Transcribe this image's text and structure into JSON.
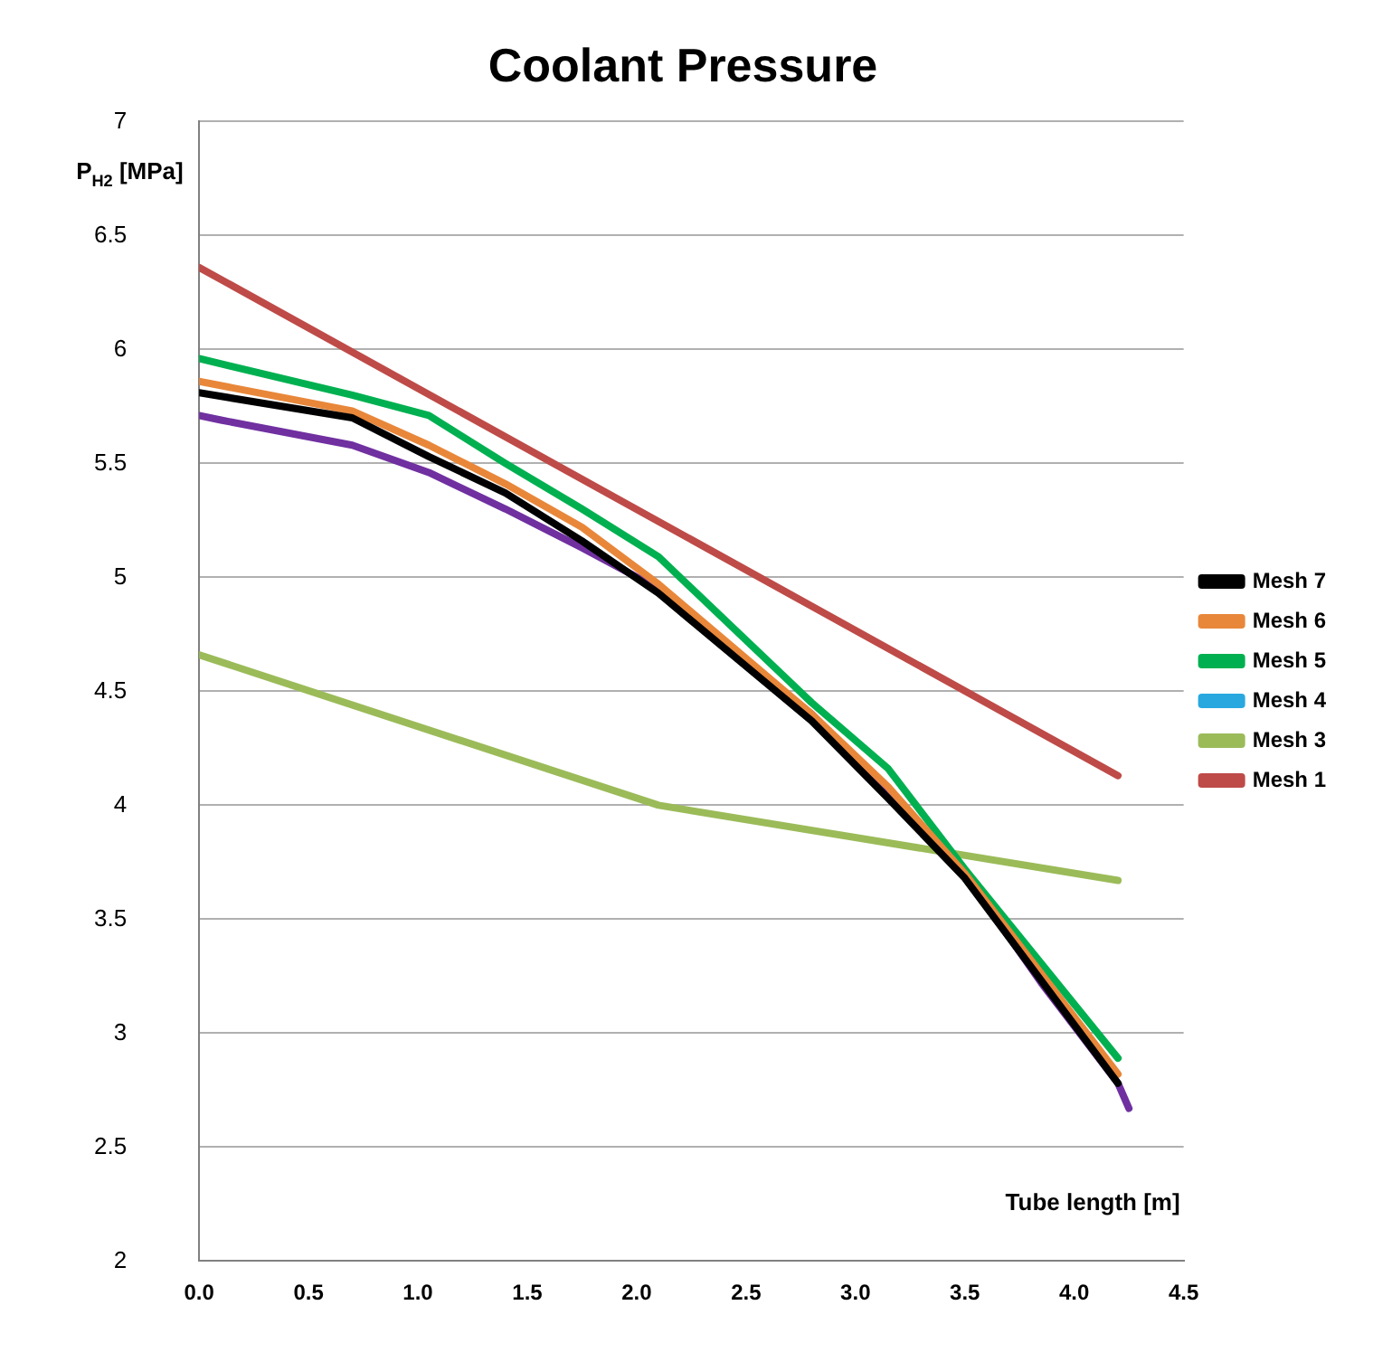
{
  "chart_data": {
    "type": "line",
    "title": "Coolant Pressure",
    "xlabel": "Tube length [m]",
    "ylabel": "P$_{H2}$ [MPa]",
    "xlim": [
      0,
      4.5
    ],
    "xticks": [
      {
        "value": 0,
        "label": "0.0"
      },
      {
        "value": 0.5,
        "label": "0.5"
      },
      {
        "value": 1,
        "label": "1.0"
      },
      {
        "value": 1.5,
        "label": "1.5"
      },
      {
        "value": 2,
        "label": "2.0"
      },
      {
        "value": 2.5,
        "label": "2.5"
      },
      {
        "value": 3,
        "label": "3.0"
      },
      {
        "value": 3.5,
        "label": "3.5"
      },
      {
        "value": 4,
        "label": "4.0"
      },
      {
        "value": 4.5,
        "label": "4.5"
      }
    ],
    "ylim": [
      2,
      7
    ],
    "yticks": [
      2,
      2.5,
      3,
      3.5,
      4,
      4.5,
      5,
      5.5,
      6,
      6.5,
      7
    ],
    "grid": "y",
    "legend": "right",
    "marker": "none",
    "line_style": "solid",
    "series": [
      {
        "color": "#7030a0",
        "x": [
          0,
          0.1,
          0.7,
          1.05,
          1.4,
          1.75,
          2.1,
          2.45,
          2.8,
          3.15,
          3.5,
          3.85,
          4.2,
          4.25
        ],
        "values": [
          5.71,
          5.69,
          5.58,
          5.46,
          5.3,
          5.13,
          4.95,
          4.67,
          4.4,
          4.06,
          3.7,
          3.22,
          2.78,
          2.67
        ]
      },
      {
        "name": "Mesh 1",
        "color": "#be4b48",
        "x": [
          0,
          4.2
        ],
        "values": [
          6.36,
          4.13
        ]
      },
      {
        "name": "Mesh 3",
        "color": "#9bbb59",
        "x": [
          0,
          2.1,
          4.2
        ],
        "values": [
          4.66,
          4.0,
          3.67
        ]
      },
      {
        "name": "Mesh 4",
        "color": "#29a8e0"
      },
      {
        "name": "Mesh 5",
        "color": "#00b050",
        "x": [
          0,
          0.7,
          1.05,
          1.4,
          1.75,
          2.1,
          2.45,
          2.8,
          3.15,
          3.5,
          4.2
        ],
        "values": [
          5.96,
          5.8,
          5.71,
          5.5,
          5.3,
          5.09,
          4.77,
          4.45,
          4.16,
          3.72,
          2.89
        ]
      },
      {
        "name": "Mesh 6",
        "color": "#e8873a",
        "x": [
          0,
          0.7,
          1.05,
          1.4,
          1.75,
          2.1,
          2.8,
          3.15,
          3.5,
          4.2
        ],
        "values": [
          5.86,
          5.73,
          5.58,
          5.41,
          5.22,
          4.97,
          4.4,
          4.08,
          3.7,
          2.82
        ]
      },
      {
        "name": "Mesh 7",
        "color": "#000000",
        "x": [
          0,
          0.7,
          1.05,
          1.4,
          1.75,
          2.1,
          2.8,
          3.15,
          3.5,
          4.2
        ],
        "values": [
          5.81,
          5.7,
          5.53,
          5.37,
          5.16,
          4.93,
          4.37,
          4.03,
          3.68,
          2.78
        ]
      }
    ]
  }
}
